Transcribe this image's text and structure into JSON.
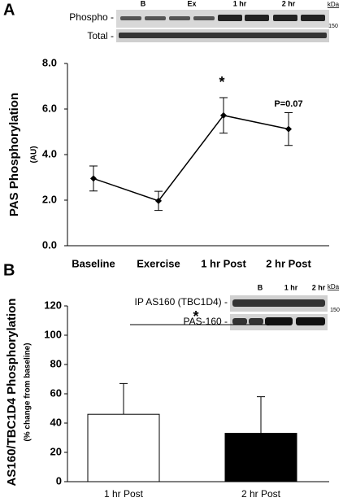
{
  "chart_data": [
    {
      "type": "line",
      "panel": "A",
      "y_label": "PAS Phosphorylation",
      "y_sublabel": "(AU)",
      "categories": [
        "Baseline",
        "Exercise",
        "1 hr Post",
        "2 hr Post"
      ],
      "values": [
        2.95,
        1.97,
        5.72,
        5.12
      ],
      "errors": [
        0.55,
        0.42,
        0.78,
        0.72
      ],
      "color": "#000000",
      "ylim": [
        0,
        8
      ],
      "yticks": [
        {
          "value": 0,
          "label": "0.0"
        },
        {
          "value": 2,
          "label": "2.0"
        },
        {
          "value": 4,
          "label": "4.0"
        },
        {
          "value": 6,
          "label": "6.0"
        },
        {
          "value": 8,
          "label": "8.0"
        }
      ],
      "annotations": [
        "*",
        "P=0.07"
      ],
      "blot": {
        "rows": [
          "Phospho -",
          "Total -"
        ],
        "lanes": [
          "B",
          "Ex",
          "1 hr",
          "2 hr"
        ],
        "unit": "kDa",
        "marker": "150"
      }
    },
    {
      "type": "bar",
      "panel": "B",
      "y_label": "AS160/TBC1D4 Phosphorylation",
      "y_sublabel": "(% change from baseline)",
      "categories": [
        "1 hr Post",
        "2 hr Post"
      ],
      "values": [
        46,
        33
      ],
      "errors": [
        21,
        25
      ],
      "colors": [
        "#ffffff",
        "#000000"
      ],
      "ylim": [
        0,
        120
      ],
      "yticks": [
        0,
        20,
        40,
        60,
        80,
        100,
        120
      ],
      "annotations": [
        "*"
      ],
      "blot": {
        "rows": [
          "IP AS160 (TBC1D4) -",
          "PAS-160 -"
        ],
        "lanes": [
          "B",
          "1 hr",
          "2 hr"
        ],
        "unit": "kDa",
        "marker": "150"
      }
    }
  ]
}
